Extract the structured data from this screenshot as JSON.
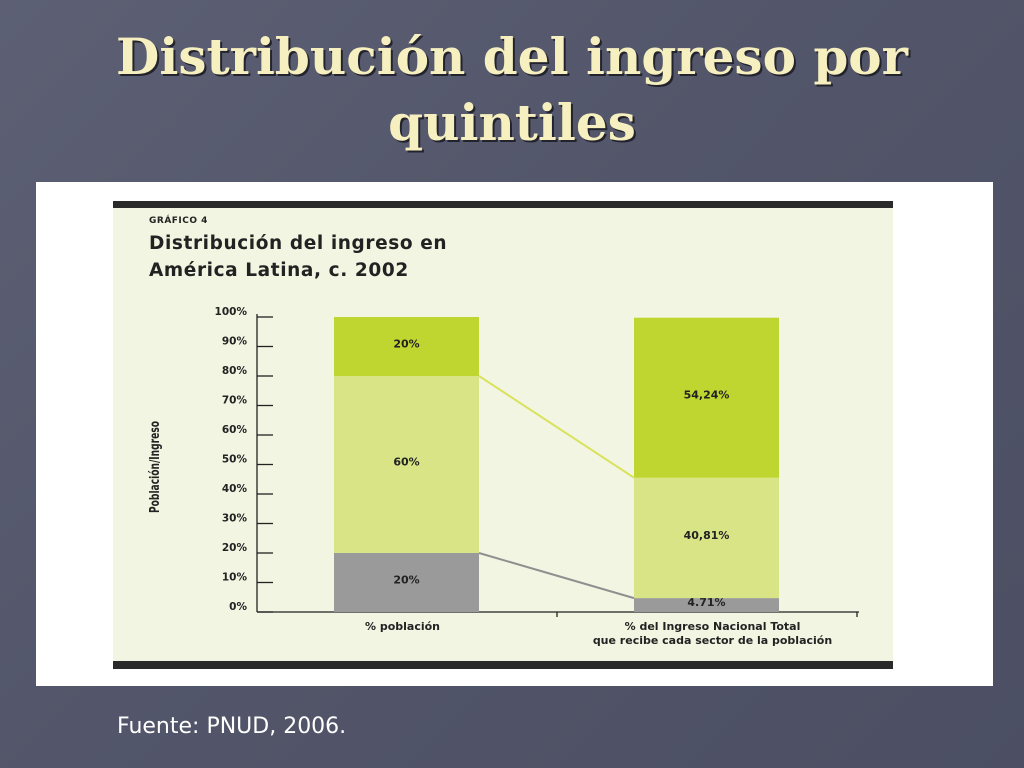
{
  "slide": {
    "title_line1": "Distribución del ingreso por",
    "title_line2": "quintiles",
    "source": "Fuente: PNUD, 2006."
  },
  "figure": {
    "label": "GRÁFICO 4",
    "title_line1": "Distribución del ingreso en",
    "title_line2": "América Latina, c. 2002"
  },
  "chart_data": {
    "type": "bar",
    "stacked": true,
    "categories": [
      "% población",
      "% del Ingreso Nacional Total\nque recibe cada sector de la población"
    ],
    "segments": [
      {
        "values": [
          20,
          4.71
        ],
        "labels": [
          "20%",
          "4.71%"
        ],
        "color": "#9a9a9a"
      },
      {
        "values": [
          60,
          40.81
        ],
        "labels": [
          "60%",
          "40,81%"
        ],
        "color": "#d9e486"
      },
      {
        "values": [
          20,
          54.24
        ],
        "labels": [
          "20%",
          "54,24%"
        ],
        "color": "#c0d630"
      }
    ],
    "connectors": [
      {
        "from_level": 80,
        "to_level": 45.52,
        "color": "#d8e25a"
      },
      {
        "from_level": 20,
        "to_level": 4.71,
        "color": "#8f8f8f"
      }
    ],
    "ylabel": "Población/Ingreso",
    "ylim": [
      0,
      100
    ],
    "yticks": [
      "0%",
      "10%",
      "20%",
      "30%",
      "40%",
      "50%",
      "60%",
      "70%",
      "80%",
      "90%",
      "100%"
    ]
  }
}
